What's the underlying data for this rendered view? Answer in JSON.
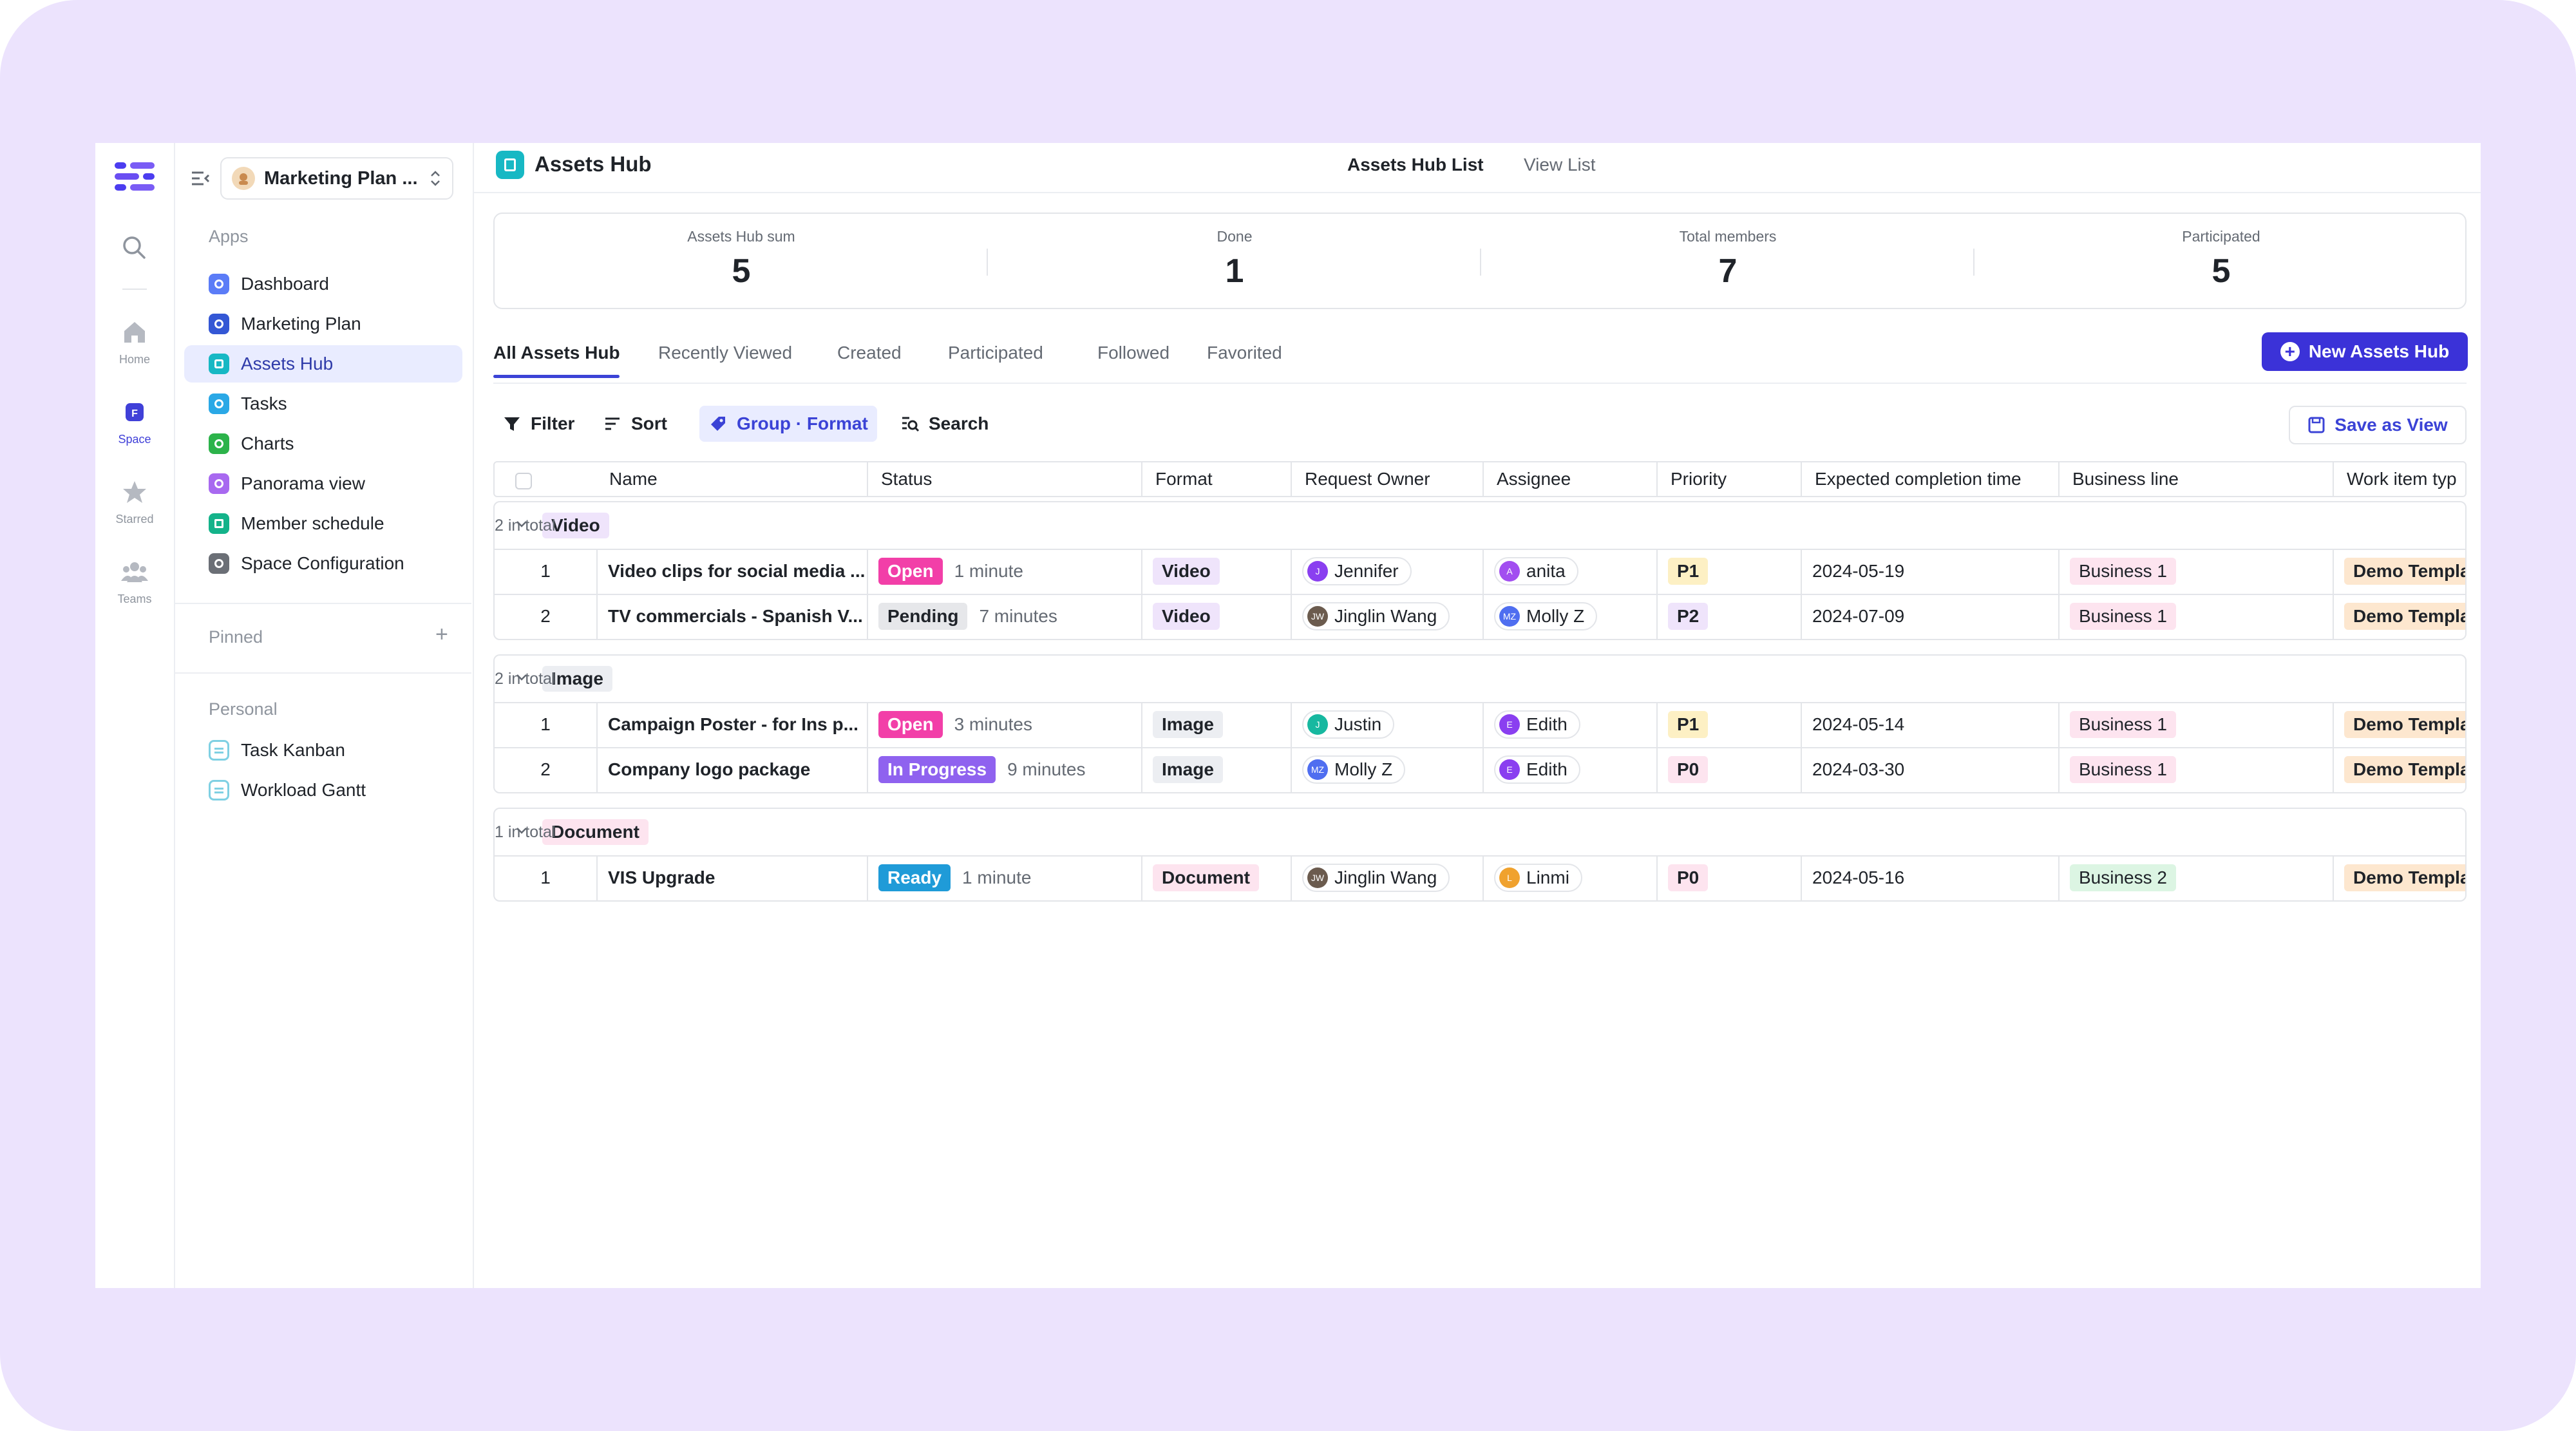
{
  "rail": {
    "items": [
      {
        "label": "Home",
        "icon": "home-icon"
      },
      {
        "label": "Space",
        "icon": "space-icon"
      },
      {
        "label": "Starred",
        "icon": "star-icon"
      },
      {
        "label": "Teams",
        "icon": "teams-icon"
      }
    ]
  },
  "sidebar": {
    "space_name": "Marketing Plan ...",
    "apps_title": "Apps",
    "apps": [
      {
        "label": "Dashboard",
        "color": "#5b7cf7"
      },
      {
        "label": "Marketing Plan",
        "color": "#3457d5"
      },
      {
        "label": "Assets Hub",
        "color": "#17b8c4"
      },
      {
        "label": "Tasks",
        "color": "#2aa8e6"
      },
      {
        "label": "Charts",
        "color": "#2cb34a"
      },
      {
        "label": "Panorama view",
        "color": "#a869f0"
      },
      {
        "label": "Member schedule",
        "color": "#14b38a"
      },
      {
        "label": "Space Configuration",
        "color": "#6b6f76"
      }
    ],
    "pinned_title": "Pinned",
    "personal_title": "Personal",
    "personal": [
      {
        "label": "Task Kanban"
      },
      {
        "label": "Workload Gantt"
      }
    ]
  },
  "header": {
    "title": "Assets Hub",
    "view_tabs": [
      "Assets Hub List",
      "View List"
    ]
  },
  "stats": [
    {
      "label": "Assets Hub sum",
      "value": "5"
    },
    {
      "label": "Done",
      "value": "1"
    },
    {
      "label": "Total members",
      "value": "7"
    },
    {
      "label": "Participated",
      "value": "5"
    }
  ],
  "tabs": [
    "All Assets Hub",
    "Recently Viewed",
    "Created",
    "Participated",
    "Followed",
    "Favorited"
  ],
  "new_button": "New Assets Hub",
  "toolbar": {
    "filter": "Filter",
    "sort": "Sort",
    "group": "Group · Format",
    "search": "Search",
    "save_view": "Save as View"
  },
  "columns": [
    "Name",
    "Status",
    "Format",
    "Request Owner",
    "Assignee",
    "Priority",
    "Expected completion time",
    "Business line",
    "Work item typ"
  ],
  "groups": [
    {
      "label": "Video",
      "count": "2 in total",
      "tag_bg": "#efe4fb",
      "rows": [
        {
          "idx": "1",
          "name": "Video clips for social media ...",
          "status": "Open",
          "status_bg": "#f23fa8",
          "status_fg": "#ffffff",
          "dur": "1 minute",
          "format": "Video",
          "format_bg": "#efe4fb",
          "owner": "Jennifer",
          "owner_av": "J",
          "owner_c": "#8a3ff0",
          "assignee": "anita",
          "assignee_av": "A",
          "assignee_c": "#a24ef0",
          "priority": "P1",
          "priority_bg": "#fdf0c4",
          "date": "2024-05-19",
          "business": "Business 1",
          "business_bg": "#fde4ef",
          "work": "Demo Template"
        },
        {
          "idx": "2",
          "name": "TV commercials - Spanish V...",
          "status": "Pending",
          "status_bg": "#e6e7ea",
          "status_fg": "#1f2329",
          "dur": "7 minutes",
          "format": "Video",
          "format_bg": "#efe4fb",
          "owner": "Jinglin Wang",
          "owner_av": "JW",
          "owner_c": "#6b5b4e",
          "assignee": "Molly Z",
          "assignee_av": "MZ",
          "assignee_c": "#4f6ef0",
          "priority": "P2",
          "priority_bg": "#efe4fb",
          "date": "2024-07-09",
          "business": "Business 1",
          "business_bg": "#fde4ef",
          "work": "Demo Template"
        }
      ]
    },
    {
      "label": "Image",
      "count": "2 in total",
      "tag_bg": "#eceef2",
      "rows": [
        {
          "idx": "1",
          "name": "Campaign Poster - for Ins p...",
          "status": "Open",
          "status_bg": "#f23fa8",
          "status_fg": "#ffffff",
          "dur": "3 minutes",
          "format": "Image",
          "format_bg": "#eceef2",
          "owner": "Justin",
          "owner_av": "J",
          "owner_c": "#17b8a0",
          "assignee": "Edith",
          "assignee_av": "E",
          "assignee_c": "#8a3ff0",
          "priority": "P1",
          "priority_bg": "#fdf0c4",
          "date": "2024-05-14",
          "business": "Business 1",
          "business_bg": "#fde4ef",
          "work": "Demo Template"
        },
        {
          "idx": "2",
          "name": "Company logo package",
          "status": "In Progress",
          "status_bg": "#8f62ef",
          "status_fg": "#ffffff",
          "dur": "9 minutes",
          "format": "Image",
          "format_bg": "#eceef2",
          "owner": "Molly Z",
          "owner_av": "MZ",
          "owner_c": "#4f6ef0",
          "assignee": "Edith",
          "assignee_av": "E",
          "assignee_c": "#8a3ff0",
          "priority": "P0",
          "priority_bg": "#fde4ef",
          "date": "2024-03-30",
          "business": "Business 1",
          "business_bg": "#fde4ef",
          "work": "Demo Template"
        }
      ]
    },
    {
      "label": "Document",
      "count": "1 in total",
      "tag_bg": "#fde4ef",
      "rows": [
        {
          "idx": "1",
          "name": "VIS Upgrade",
          "status": "Ready",
          "status_bg": "#1f9bd8",
          "status_fg": "#ffffff",
          "dur": "1 minute",
          "format": "Document",
          "format_bg": "#fde4ef",
          "owner": "Jinglin Wang",
          "owner_av": "JW",
          "owner_c": "#6b5b4e",
          "assignee": "Linmi",
          "assignee_av": "L",
          "assignee_c": "#f0a22e",
          "priority": "P0",
          "priority_bg": "#fde4ef",
          "date": "2024-05-16",
          "business": "Business 2",
          "business_bg": "#dcf5e3",
          "work": "Demo Template"
        }
      ]
    }
  ]
}
